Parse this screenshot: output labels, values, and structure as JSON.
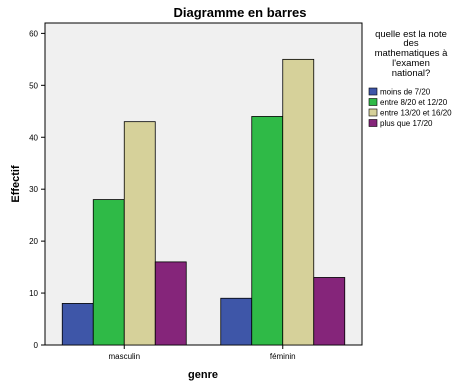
{
  "chart_data": {
    "type": "bar",
    "title": "Diagramme en barres",
    "xlabel": "genre",
    "ylabel": "Effectif",
    "categories": [
      "masculin",
      "féminin"
    ],
    "ylim": [
      0,
      62
    ],
    "yticks": [
      0,
      10,
      20,
      30,
      40,
      50,
      60
    ],
    "grid": false,
    "legend": {
      "title_lines": [
        "quelle est la note",
        "des",
        "mathematiques à",
        "l'examen",
        "national?"
      ],
      "placement": "right"
    },
    "series": [
      {
        "name": "moins de 7/20",
        "color": "#3e56a8",
        "values": [
          8,
          9
        ]
      },
      {
        "name": "entre 8/20 et 12/20",
        "color": "#2fba47",
        "values": [
          28,
          44
        ]
      },
      {
        "name": "entre 13/20 et 16/20",
        "color": "#d6d19a",
        "values": [
          43,
          55
        ]
      },
      {
        "name": "plus que 17/20",
        "color": "#85257a",
        "values": [
          16,
          13
        ]
      }
    ]
  }
}
